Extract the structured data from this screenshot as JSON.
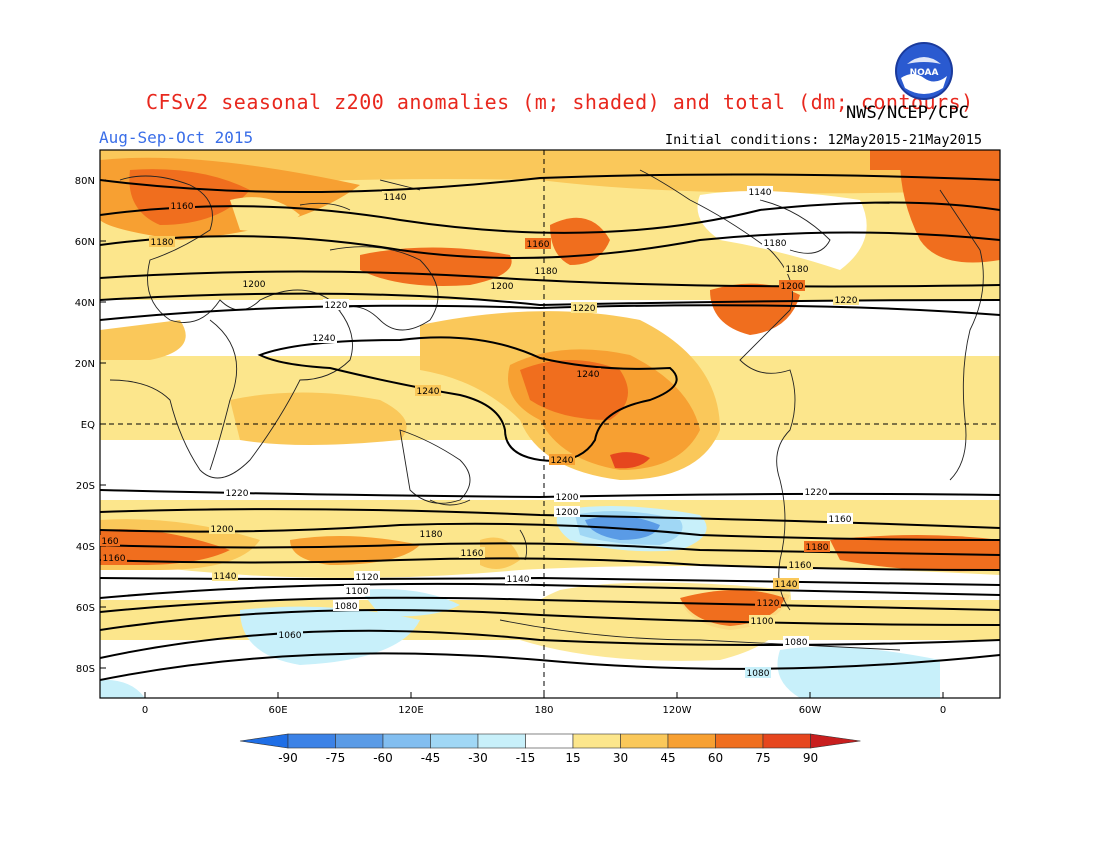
{
  "header": {
    "title": "CFSv2 seasonal z200 anomalies (m; shaded) and total (dm; contours)",
    "agency": "NWS/NCEP/CPC",
    "logo_text": "NOAA",
    "period": "Aug-Sep-Oct 2015",
    "initial_conditions": "Initial conditions: 12May2015-21May2015"
  },
  "map": {
    "lat_labels": [
      "80N",
      "60N",
      "40N",
      "20N",
      "EQ",
      "20S",
      "40S",
      "60S",
      "80S"
    ],
    "lon_labels": [
      "0",
      "60E",
      "120E",
      "180",
      "120W",
      "60W",
      "0"
    ],
    "contour_labels": [
      {
        "text": "1140"
      },
      {
        "text": "1140"
      },
      {
        "text": "1160"
      },
      {
        "text": "1160"
      },
      {
        "text": "1180"
      },
      {
        "text": "1180"
      },
      {
        "text": "1180"
      },
      {
        "text": "1180"
      },
      {
        "text": "1200"
      },
      {
        "text": "1200"
      },
      {
        "text": "1200"
      },
      {
        "text": "1220"
      },
      {
        "text": "1220"
      },
      {
        "text": "1220"
      },
      {
        "text": "1240"
      },
      {
        "text": "1240"
      },
      {
        "text": "1240"
      },
      {
        "text": "1240"
      },
      {
        "text": "1220"
      },
      {
        "text": "1220"
      },
      {
        "text": "1200"
      },
      {
        "text": "1200"
      },
      {
        "text": "1200"
      },
      {
        "text": "1180"
      },
      {
        "text": "1180"
      },
      {
        "text": "1160"
      },
      {
        "text": "1160"
      },
      {
        "text": "1160"
      },
      {
        "text": "160"
      },
      {
        "text": "1160"
      },
      {
        "text": "1140"
      },
      {
        "text": "1140"
      },
      {
        "text": "1140"
      },
      {
        "text": "1120"
      },
      {
        "text": "1120"
      },
      {
        "text": "1100"
      },
      {
        "text": "1100"
      },
      {
        "text": "1080"
      },
      {
        "text": "1080"
      },
      {
        "text": "1080"
      },
      {
        "text": "1060"
      }
    ]
  },
  "colorbar": {
    "labels": [
      "-90",
      "-75",
      "-60",
      "-45",
      "-30",
      "-15",
      "15",
      "30",
      "45",
      "60",
      "75",
      "90"
    ],
    "colors": [
      "#1e6ee6",
      "#3c82e6",
      "#5a9be6",
      "#82bef0",
      "#a0d7f5",
      "#c8f0fa",
      "#ffffff",
      "#fce68c",
      "#fac85a",
      "#f7a032",
      "#f06e1e",
      "#e6461e",
      "#c81e1e"
    ]
  }
}
